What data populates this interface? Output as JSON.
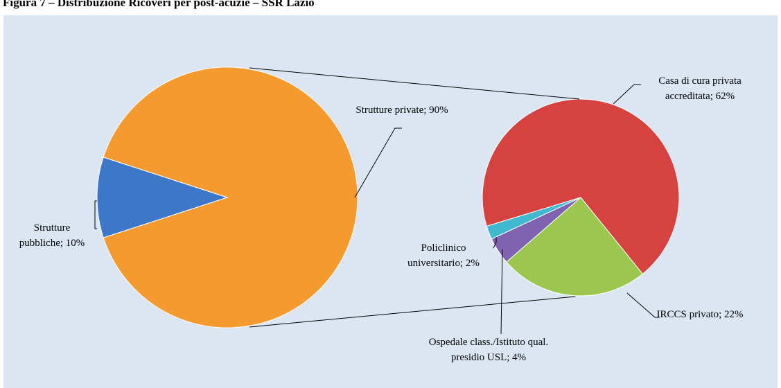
{
  "chart_data": {
    "type": "pie-of-pie",
    "title": "Figura 7 – Distribuzione Ricoveri per post-acuzie – SSR Lazio",
    "main": {
      "values": [
        10,
        90
      ],
      "value_labels": [
        "Strutture pubbliche; 10%",
        "Strutture private; 90%"
      ],
      "colors": [
        "#3d78c8",
        "#f59a2e"
      ]
    },
    "secondary": {
      "values": [
        62,
        22,
        4,
        2
      ],
      "value_labels": [
        "Casa di cura privata accreditata; 62%",
        "IRCCS privato; 22%",
        "Ospedale class./Istituto qual. presidio USL; 4%",
        "Policlinico universitario; 2%"
      ],
      "colors": [
        "#d54240",
        "#9cc74e",
        "#8063b0",
        "#3fb8d0"
      ]
    }
  }
}
